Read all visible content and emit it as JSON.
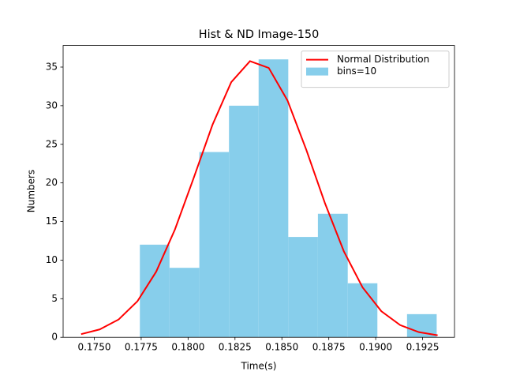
{
  "chart_data": {
    "type": "histogram",
    "title": "Hist & ND Image-150",
    "xlabel": "Time(s)",
    "ylabel": "Numbers",
    "bins": [
      0.17743,
      0.17901,
      0.1806,
      0.18218,
      0.18376,
      0.18534,
      0.18692,
      0.18851,
      0.19009,
      0.19167,
      0.19325
    ],
    "series": [
      {
        "name": "Normal Distribution",
        "type": "line",
        "color": "#ff0000",
        "x": [
          0.1743,
          0.1753,
          0.1763,
          0.1773,
          0.1783,
          0.1793,
          0.1803,
          0.1813,
          0.1823,
          0.1833,
          0.1843,
          0.1853,
          0.1863,
          0.1873,
          0.1883,
          0.1893,
          0.1903,
          0.1913,
          0.1923,
          0.1933
        ],
        "values": [
          0.41,
          1.03,
          2.31,
          4.67,
          8.5,
          13.97,
          20.65,
          27.52,
          33.05,
          35.77,
          34.89,
          30.67,
          24.29,
          17.34,
          11.15,
          6.47,
          3.38,
          1.59,
          0.67,
          0.26
        ]
      },
      {
        "name": "bins=10",
        "type": "histogram",
        "color": "#87ceeb",
        "values": [
          12,
          9,
          24,
          30,
          36,
          13,
          16,
          7,
          0,
          3
        ]
      }
    ],
    "xlim": [
      0.17334,
      0.1942
    ],
    "ylim": [
      0,
      37.8
    ],
    "xticks": [
      {
        "value": 0.175,
        "label": "0.1750"
      },
      {
        "value": 0.1775,
        "label": "0.1775"
      },
      {
        "value": 0.18,
        "label": "0.1800"
      },
      {
        "value": 0.1825,
        "label": "0.1825"
      },
      {
        "value": 0.185,
        "label": "0.1850"
      },
      {
        "value": 0.1875,
        "label": "0.1875"
      },
      {
        "value": 0.19,
        "label": "0.1900"
      },
      {
        "value": 0.1925,
        "label": "0.1925"
      }
    ],
    "yticks": [
      0,
      5,
      10,
      15,
      20,
      25,
      30,
      35
    ],
    "legend": "upper right"
  }
}
